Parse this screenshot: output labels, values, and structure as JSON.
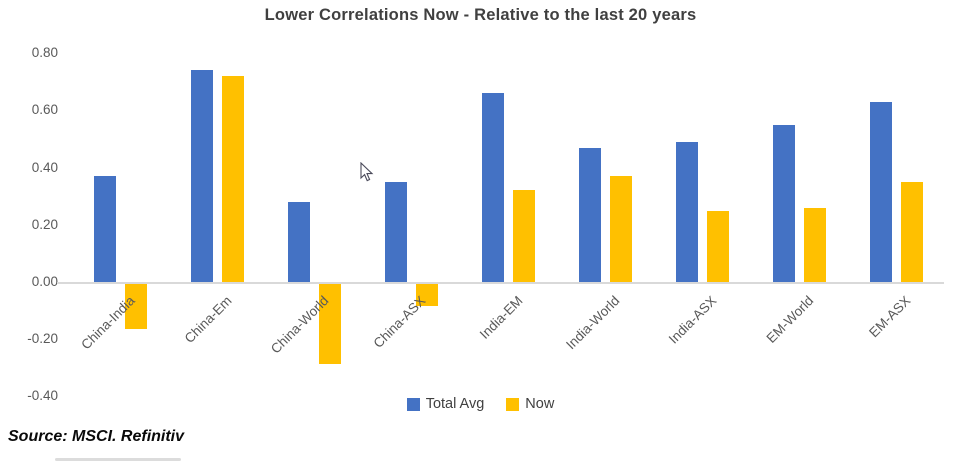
{
  "source_note": "Source: MSCI. Refinitiv",
  "colors": {
    "series_blue": "#4472C4",
    "series_yellow": "#FFC000",
    "axis_line": "#D9D9D9",
    "tick_text": "#595959",
    "title_text": "#404040"
  },
  "chart_data": {
    "type": "bar",
    "title": "Lower Correlations Now - Relative to the last 20 years",
    "categories": [
      "China-India",
      "China-Em",
      "China-World",
      "China-ASX",
      "India-EM",
      "India-World",
      "India-ASX",
      "EM-World",
      "EM-ASX"
    ],
    "series": [
      {
        "name": "Total Avg",
        "color": "#4472C4",
        "values": [
          0.37,
          0.74,
          0.28,
          0.35,
          0.66,
          0.47,
          0.49,
          0.55,
          0.63
        ]
      },
      {
        "name": "Now",
        "color": "#FFC000",
        "values": [
          -0.16,
          0.72,
          -0.28,
          -0.08,
          0.32,
          0.37,
          0.25,
          0.26,
          0.35
        ]
      }
    ],
    "xlabel": "",
    "ylabel": "",
    "ylim": [
      -0.4,
      0.8
    ],
    "y_ticks": [
      "0.80",
      "0.60",
      "0.40",
      "0.20",
      "0.00",
      "-0.20",
      "-0.40"
    ],
    "y_tick_values": [
      0.8,
      0.6,
      0.4,
      0.2,
      0.0,
      -0.2,
      -0.4
    ],
    "grid": false,
    "legend_position": "bottom"
  }
}
